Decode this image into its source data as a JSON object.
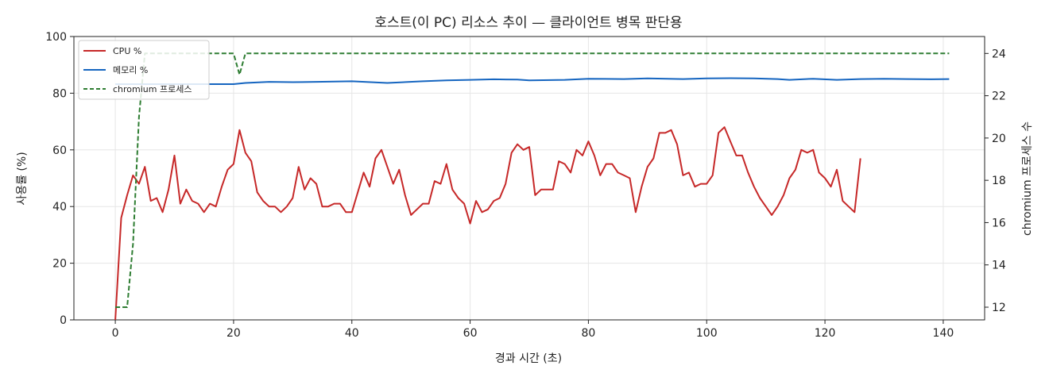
{
  "chart_data": {
    "type": "line",
    "title": "호스트(이 PC) 리소스 추이 — 클라이언트 병목 판단용",
    "xlabel": "경과 시간 (초)",
    "ylabel": "사용률 (%)",
    "ylabel_right": "chromium 프로세스 수",
    "xlim": [
      -7,
      147
    ],
    "ylim": [
      0,
      100
    ],
    "ylim_right": [
      11.4,
      24.8
    ],
    "x_ticks": [
      0,
      20,
      40,
      60,
      80,
      100,
      120,
      140
    ],
    "y_ticks": [
      0,
      20,
      40,
      60,
      80,
      100
    ],
    "y_ticks_right": [
      12,
      14,
      16,
      18,
      20,
      22,
      24
    ],
    "grid": true,
    "legend": "top-left",
    "colors": {
      "cpu": "#c62828",
      "mem": "#1565c0",
      "proc": "#2e7d32"
    },
    "series": [
      {
        "name": "CPU %",
        "axis": "left",
        "style": "solid",
        "points": [
          [
            0,
            0
          ],
          [
            1,
            36
          ],
          [
            2,
            44
          ],
          [
            3,
            51
          ],
          [
            4,
            48
          ],
          [
            5,
            54
          ],
          [
            6,
            42
          ],
          [
            7,
            43
          ],
          [
            8,
            38
          ],
          [
            9,
            46
          ],
          [
            10,
            58
          ],
          [
            11,
            41
          ],
          [
            12,
            46
          ],
          [
            13,
            42
          ],
          [
            14,
            41
          ],
          [
            15,
            38
          ],
          [
            16,
            41
          ],
          [
            17,
            40
          ],
          [
            18,
            47
          ],
          [
            19,
            53
          ],
          [
            20,
            55
          ],
          [
            21,
            67
          ],
          [
            22,
            59
          ],
          [
            23,
            56
          ],
          [
            24,
            45
          ],
          [
            25,
            42
          ],
          [
            26,
            40
          ],
          [
            27,
            40
          ],
          [
            28,
            38
          ],
          [
            29,
            40
          ],
          [
            30,
            43
          ],
          [
            31,
            54
          ],
          [
            32,
            46
          ],
          [
            33,
            50
          ],
          [
            34,
            48
          ],
          [
            35,
            40
          ],
          [
            36,
            40
          ],
          [
            37,
            41
          ],
          [
            38,
            41
          ],
          [
            39,
            38
          ],
          [
            40,
            38
          ],
          [
            41,
            45
          ],
          [
            42,
            52
          ],
          [
            43,
            47
          ],
          [
            44,
            57
          ],
          [
            45,
            60
          ],
          [
            46,
            54
          ],
          [
            47,
            48
          ],
          [
            48,
            53
          ],
          [
            49,
            44
          ],
          [
            50,
            37
          ],
          [
            51,
            39
          ],
          [
            52,
            41
          ],
          [
            53,
            41
          ],
          [
            54,
            49
          ],
          [
            55,
            48
          ],
          [
            56,
            55
          ],
          [
            57,
            46
          ],
          [
            58,
            43
          ],
          [
            59,
            41
          ],
          [
            60,
            34
          ],
          [
            61,
            42
          ],
          [
            62,
            38
          ],
          [
            63,
            39
          ],
          [
            64,
            42
          ],
          [
            65,
            43
          ],
          [
            66,
            48
          ],
          [
            67,
            59
          ],
          [
            68,
            62
          ],
          [
            69,
            60
          ],
          [
            70,
            61
          ],
          [
            71,
            44
          ],
          [
            72,
            46
          ],
          [
            73,
            46
          ],
          [
            74,
            46
          ],
          [
            75,
            56
          ],
          [
            76,
            55
          ],
          [
            77,
            52
          ],
          [
            78,
            60
          ],
          [
            79,
            58
          ],
          [
            80,
            63
          ],
          [
            81,
            58
          ],
          [
            82,
            51
          ],
          [
            83,
            55
          ],
          [
            84,
            55
          ],
          [
            85,
            52
          ],
          [
            86,
            51
          ],
          [
            87,
            50
          ],
          [
            88,
            38
          ],
          [
            89,
            47
          ],
          [
            90,
            54
          ],
          [
            91,
            57
          ],
          [
            92,
            66
          ],
          [
            93,
            66
          ],
          [
            94,
            67
          ],
          [
            95,
            62
          ],
          [
            96,
            51
          ],
          [
            97,
            52
          ],
          [
            98,
            47
          ],
          [
            99,
            48
          ],
          [
            100,
            48
          ],
          [
            101,
            51
          ],
          [
            102,
            66
          ],
          [
            103,
            68
          ],
          [
            104,
            63
          ],
          [
            105,
            58
          ],
          [
            106,
            58
          ],
          [
            107,
            52
          ],
          [
            108,
            47
          ],
          [
            109,
            43
          ],
          [
            110,
            40
          ],
          [
            111,
            37
          ],
          [
            112,
            40
          ],
          [
            113,
            44
          ],
          [
            114,
            50
          ],
          [
            115,
            53
          ],
          [
            116,
            60
          ],
          [
            117,
            59
          ],
          [
            118,
            60
          ],
          [
            119,
            52
          ],
          [
            120,
            50
          ],
          [
            121,
            47
          ],
          [
            122,
            53
          ],
          [
            123,
            42
          ],
          [
            124,
            40
          ],
          [
            125,
            38
          ],
          [
            126,
            57
          ]
        ]
      },
      {
        "name": "메모리 %",
        "axis": "left",
        "style": "solid",
        "points": [
          [
            0,
            83.2
          ],
          [
            20,
            83.2
          ],
          [
            22,
            83.6
          ],
          [
            26,
            84.0
          ],
          [
            30,
            83.9
          ],
          [
            34,
            84.0
          ],
          [
            40,
            84.2
          ],
          [
            46,
            83.6
          ],
          [
            52,
            84.2
          ],
          [
            56,
            84.5
          ],
          [
            60,
            84.7
          ],
          [
            64,
            84.9
          ],
          [
            68,
            84.8
          ],
          [
            70,
            84.5
          ],
          [
            76,
            84.7
          ],
          [
            80,
            85.1
          ],
          [
            86,
            85.0
          ],
          [
            90,
            85.2
          ],
          [
            96,
            85.0
          ],
          [
            100,
            85.2
          ],
          [
            104,
            85.3
          ],
          [
            108,
            85.2
          ],
          [
            112,
            85.0
          ],
          [
            114,
            84.7
          ],
          [
            118,
            85.1
          ],
          [
            122,
            84.7
          ],
          [
            126,
            85.0
          ],
          [
            130,
            85.1
          ],
          [
            134,
            85.0
          ],
          [
            138,
            84.9
          ],
          [
            141,
            85.0
          ]
        ]
      },
      {
        "name": "chromium 프로세스",
        "axis": "right",
        "style": "dashed",
        "points": [
          [
            0,
            12
          ],
          [
            1,
            12
          ],
          [
            2,
            12
          ],
          [
            3,
            15
          ],
          [
            4,
            21
          ],
          [
            5,
            24
          ],
          [
            6,
            24
          ],
          [
            20,
            24
          ],
          [
            21,
            23
          ],
          [
            22,
            24
          ],
          [
            141,
            24
          ]
        ]
      }
    ]
  }
}
